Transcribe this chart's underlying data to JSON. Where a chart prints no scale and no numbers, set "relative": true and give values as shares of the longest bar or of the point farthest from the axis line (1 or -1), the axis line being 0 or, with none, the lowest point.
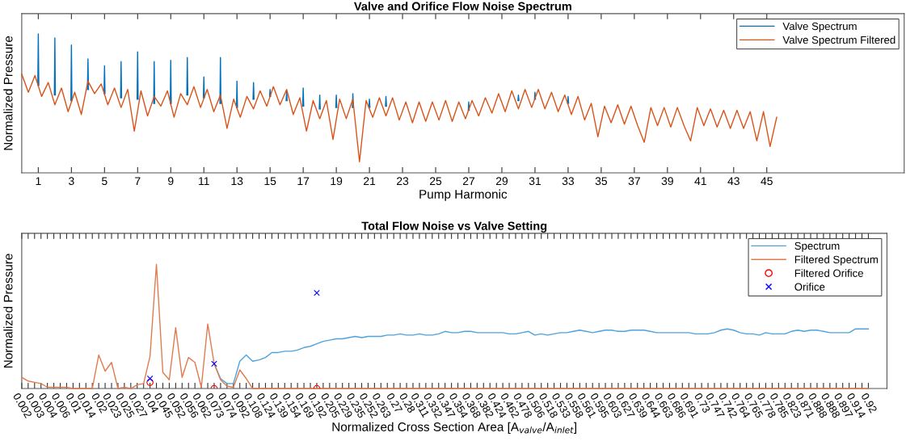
{
  "chart_data": [
    {
      "type": "line",
      "title": "Valve and Orifice Flow Noise Spectrum",
      "xlabel": "Pump Harmonic",
      "ylabel": "Normalized Pressure",
      "relative": true,
      "xlim": [
        0,
        53.3
      ],
      "xticks": [
        1,
        3,
        5,
        7,
        9,
        11,
        13,
        15,
        17,
        19,
        21,
        23,
        25,
        27,
        29,
        31,
        33,
        35,
        37,
        39,
        41,
        43,
        45
      ],
      "legend": "top right",
      "grid": false,
      "series": [
        {
          "name": "Valve Spectrum",
          "color": "#0072bd",
          "x": [
            0.97,
            1,
            1.03,
            1.5,
            1.97,
            2,
            2.03,
            2.5,
            2.97,
            3,
            3.03,
            3.5,
            3.97,
            4,
            4.03,
            4.5,
            4.97,
            5,
            5.03,
            5.5,
            5.97,
            6,
            6.03,
            6.5,
            6.97,
            7,
            7.03,
            7.5,
            7.97,
            8,
            8.03,
            8.5,
            8.97,
            9,
            9.03,
            9.5,
            9.97,
            10,
            10.03,
            10.5,
            10.97,
            11,
            11.03,
            11.5,
            11.97,
            12,
            12.03,
            12.5,
            12.97,
            13,
            13.03,
            13.5,
            13.97,
            14,
            14.03,
            14.5,
            14.97,
            15,
            15.03,
            15.5,
            15.97,
            16,
            16.03,
            16.5,
            16.97,
            17,
            17.03,
            17.5,
            17.97,
            18,
            18.03,
            18.5,
            18.97,
            19,
            19.03,
            19.5,
            19.97,
            20,
            20.03,
            20.5,
            20.97,
            21,
            21.03,
            21.5,
            21.97,
            22,
            22.03,
            22.5,
            26.97,
            27,
            27.03,
            27.5,
            29.97,
            30,
            30.03,
            30.5,
            30.97,
            31,
            31.03,
            31.5,
            32.97,
            33,
            33.03
          ],
          "values": [
            0.63,
            1.0,
            0.63,
            null,
            0.56,
            0.97,
            0.56,
            null,
            0.52,
            0.92,
            0.52,
            null,
            0.6,
            0.82,
            0.6,
            null,
            0.57,
            0.77,
            0.57,
            null,
            0.54,
            0.8,
            0.54,
            null,
            0.53,
            0.87,
            0.53,
            null,
            0.5,
            0.8,
            0.5,
            null,
            0.5,
            0.81,
            0.5,
            null,
            0.56,
            0.83,
            0.56,
            null,
            0.54,
            0.69,
            0.54,
            null,
            0.5,
            0.83,
            0.5,
            null,
            0.47,
            0.66,
            0.47,
            null,
            0.53,
            0.65,
            0.53,
            null,
            0.55,
            0.6,
            0.55,
            null,
            0.52,
            0.59,
            0.52,
            null,
            0.48,
            0.61,
            0.48,
            null,
            0.46,
            0.56,
            0.46,
            null,
            0.47,
            0.56,
            0.47,
            null,
            0.47,
            0.57,
            0.47,
            null,
            0.47,
            0.53,
            0.47,
            null,
            0.48,
            0.55,
            0.48,
            null,
            0.45,
            0.51,
            0.45,
            null,
            0.52,
            0.56,
            0.52,
            null,
            0.53,
            0.58,
            0.53,
            null,
            0.5,
            0.55,
            0.5
          ]
        },
        {
          "name": "Valve Spectrum Filtered",
          "color": "#d95319",
          "x": [
            0,
            0.4,
            0.8,
            1.2,
            1.6,
            2,
            2.4,
            2.8,
            3.2,
            3.6,
            4,
            4.4,
            4.8,
            5.2,
            5.6,
            6,
            6.4,
            6.8,
            7.2,
            7.6,
            8,
            8.4,
            8.8,
            9.2,
            9.6,
            10,
            10.4,
            10.8,
            11.2,
            11.6,
            12,
            12.4,
            12.8,
            13.2,
            13.6,
            14,
            14.4,
            14.8,
            15.2,
            15.6,
            16,
            16.4,
            16.8,
            17.2,
            17.6,
            18,
            18.4,
            18.8,
            19.2,
            19.6,
            20,
            20.4,
            20.8,
            21.2,
            21.6,
            22,
            22.4,
            22.8,
            23.2,
            23.6,
            24,
            24.4,
            24.8,
            25.2,
            25.6,
            26,
            26.4,
            26.8,
            27.2,
            27.6,
            28,
            28.4,
            28.8,
            29.2,
            29.6,
            30,
            30.4,
            30.8,
            31.2,
            31.6,
            32,
            32.4,
            32.8,
            33.2,
            33.6,
            34,
            34.4,
            34.8,
            35.2,
            35.6,
            36,
            36.4,
            36.8,
            37.2,
            37.6,
            38,
            38.4,
            38.8,
            39.2,
            39.6,
            40,
            40.4,
            40.8,
            41.2,
            41.6,
            42,
            42.4,
            42.8,
            43.2,
            43.6,
            44,
            44.4,
            44.8,
            45.2,
            45.6
          ],
          "values": [
            0.71,
            0.58,
            0.7,
            0.55,
            0.65,
            0.49,
            0.61,
            0.44,
            0.58,
            0.42,
            0.66,
            0.57,
            0.64,
            0.49,
            0.61,
            0.47,
            0.6,
            0.3,
            0.59,
            0.41,
            0.55,
            0.48,
            0.59,
            0.4,
            0.57,
            0.49,
            0.62,
            0.47,
            0.6,
            0.44,
            0.56,
            0.32,
            0.53,
            0.4,
            0.55,
            0.46,
            0.59,
            0.48,
            0.62,
            0.49,
            0.6,
            0.42,
            0.54,
            0.3,
            0.52,
            0.39,
            0.52,
            0.24,
            0.53,
            0.39,
            0.53,
            0.08,
            0.52,
            0.4,
            0.54,
            0.41,
            0.54,
            0.38,
            0.51,
            0.36,
            0.51,
            0.37,
            0.51,
            0.38,
            0.52,
            0.37,
            0.51,
            0.39,
            0.52,
            0.41,
            0.54,
            0.43,
            0.57,
            0.44,
            0.59,
            0.46,
            0.6,
            0.47,
            0.6,
            0.46,
            0.58,
            0.44,
            0.56,
            0.42,
            0.55,
            0.38,
            0.5,
            0.26,
            0.48,
            0.36,
            0.49,
            0.35,
            0.48,
            0.34,
            0.22,
            0.47,
            0.34,
            0.47,
            0.33,
            0.47,
            0.34,
            0.23,
            0.47,
            0.34,
            0.46,
            0.33,
            0.45,
            0.32,
            0.45,
            0.32,
            0.44,
            0.23,
            0.44,
            0.19,
            0.4
          ]
        }
      ]
    },
    {
      "type": "line",
      "title": "Total Flow Noise vs Valve Setting",
      "xlabel": "Normalized Cross Section Area [A$_{valve}$/A$_{inlet}$]",
      "ylabel": "Normalized Pressure",
      "relative": true,
      "legend": "top right",
      "grid": false,
      "categories": [
        "0.002",
        null,
        "0.003",
        null,
        "0.004",
        null,
        "0.006",
        null,
        "0.01",
        null,
        "0.014",
        null,
        "0.02",
        null,
        "0.023",
        null,
        "0.025",
        null,
        "0.027",
        null,
        "0.04",
        null,
        "0.045",
        null,
        "0.052",
        null,
        "0.056",
        null,
        "0.062",
        null,
        "0.073",
        null,
        "0.074",
        null,
        "0.092",
        null,
        "0.108",
        null,
        "0.124",
        null,
        "0.139",
        null,
        "0.154",
        null,
        "0.169",
        null,
        "0.192",
        null,
        "0.205",
        null,
        "0.229",
        null,
        "0.235",
        null,
        "0.252",
        null,
        "0.263",
        null,
        "0.27",
        null,
        "0.28",
        null,
        "0.311",
        null,
        "0.332",
        null,
        "0.347",
        null,
        "0.354",
        null,
        "0.368",
        null,
        "0.382",
        null,
        "0.424",
        null,
        "0.462",
        null,
        "0.478",
        null,
        "0.506",
        null,
        "0.518",
        null,
        "0.533",
        null,
        "0.558",
        null,
        "0.561",
        null,
        "0.595",
        null,
        "0.603",
        null,
        "0.627",
        null,
        "0.639",
        null,
        "0.644",
        null,
        "0.663",
        null,
        "0.686",
        null,
        "0.691",
        null,
        "0.73",
        null,
        "0.747",
        null,
        "0.742",
        null,
        "0.764",
        null,
        "0.765",
        null,
        "0.778",
        null,
        "0.785",
        null,
        "0.823",
        null,
        "0.871",
        null,
        "0.888",
        null,
        "0.888",
        null,
        "0.897",
        null,
        "0.914",
        null,
        "0.92"
      ],
      "series": [
        {
          "name": "Spectrum",
          "type": "line",
          "color": "#4da3dc",
          "values": [
            null,
            null,
            null,
            null,
            null,
            null,
            null,
            null,
            null,
            null,
            null,
            null,
            null,
            null,
            null,
            null,
            null,
            null,
            null,
            null,
            null,
            null,
            null,
            null,
            null,
            null,
            null,
            null,
            null,
            null,
            0.2,
            0.08,
            0.04,
            0.04,
            0.22,
            0.27,
            0.22,
            0.23,
            0.25,
            0.29,
            0.29,
            0.3,
            0.3,
            0.31,
            0.33,
            0.34,
            0.36,
            0.38,
            0.39,
            0.4,
            0.4,
            0.41,
            0.42,
            0.41,
            0.42,
            0.42,
            0.42,
            0.43,
            0.43,
            0.44,
            0.43,
            0.43,
            0.44,
            0.43,
            0.43,
            0.44,
            0.46,
            0.45,
            0.45,
            0.46,
            0.46,
            0.45,
            0.45,
            0.45,
            0.45,
            0.45,
            0.44,
            0.44,
            0.45,
            0.46,
            0.43,
            0.44,
            0.43,
            0.44,
            0.45,
            0.45,
            0.46,
            0.47,
            0.46,
            0.45,
            0.46,
            0.47,
            0.47,
            0.46,
            0.46,
            0.47,
            0.47,
            0.47,
            0.46,
            0.45,
            0.45,
            0.45,
            0.45,
            0.45,
            0.45,
            0.44,
            0.44,
            0.44,
            0.45,
            0.47,
            0.48,
            0.47,
            0.45,
            0.44,
            0.44,
            0.43,
            0.45,
            0.44,
            0.44,
            0.44,
            0.46,
            0.47,
            0.46,
            0.47,
            0.47,
            0.46,
            0.45,
            0.45,
            0.45,
            0.45,
            0.48,
            0.48,
            0.48
          ]
        },
        {
          "name": "Filtered Spectrum",
          "type": "line",
          "color": "#e07b4f",
          "values": [
            0.09,
            0.06,
            0.05,
            0.04,
            0.01,
            0.01,
            0.01,
            0.01,
            0,
            0,
            0,
            0,
            0.27,
            0.14,
            0.21,
            0,
            0.01,
            0,
            0.03,
            0.04,
            0.26,
            1.0,
            0.13,
            0.07,
            0.49,
            0.09,
            0.25,
            0.21,
            0.01,
            0.52,
            0.2,
            0.07,
            0.02,
            0.01,
            0.15,
            0.08,
            0,
            0,
            0,
            0,
            0,
            0,
            0,
            0,
            0,
            0,
            0,
            0,
            0,
            0,
            0,
            0,
            0,
            0,
            0,
            0,
            0,
            0,
            0,
            0,
            0,
            0,
            0,
            0,
            0,
            0,
            0,
            0,
            0,
            0,
            0,
            0,
            0,
            0,
            0,
            0,
            0,
            0,
            0,
            0,
            0,
            0,
            0,
            0,
            0,
            0,
            0,
            0,
            0,
            0,
            0,
            0,
            0,
            0,
            0,
            0,
            0,
            0,
            0,
            0,
            0,
            0,
            0,
            0,
            0,
            0,
            0,
            0,
            0,
            0,
            0,
            0,
            0,
            0,
            0,
            0,
            0,
            0,
            0,
            0,
            0,
            0,
            0,
            0,
            0,
            0,
            0,
            0,
            0,
            0,
            0,
            0,
            0
          ]
        },
        {
          "name": "Filtered Orifice",
          "type": "scatter",
          "marker": "circle",
          "color": "#ff0000",
          "x": [
            "0.04",
            "0.073",
            "0.192"
          ],
          "values": [
            0.05,
            0,
            0
          ]
        },
        {
          "name": "Orifice",
          "type": "scatter",
          "marker": "cross",
          "color": "#0000ff",
          "x": [
            "0.04",
            "0.073",
            "0.192"
          ],
          "values": [
            0.08,
            0.2,
            0.77
          ]
        }
      ]
    }
  ]
}
